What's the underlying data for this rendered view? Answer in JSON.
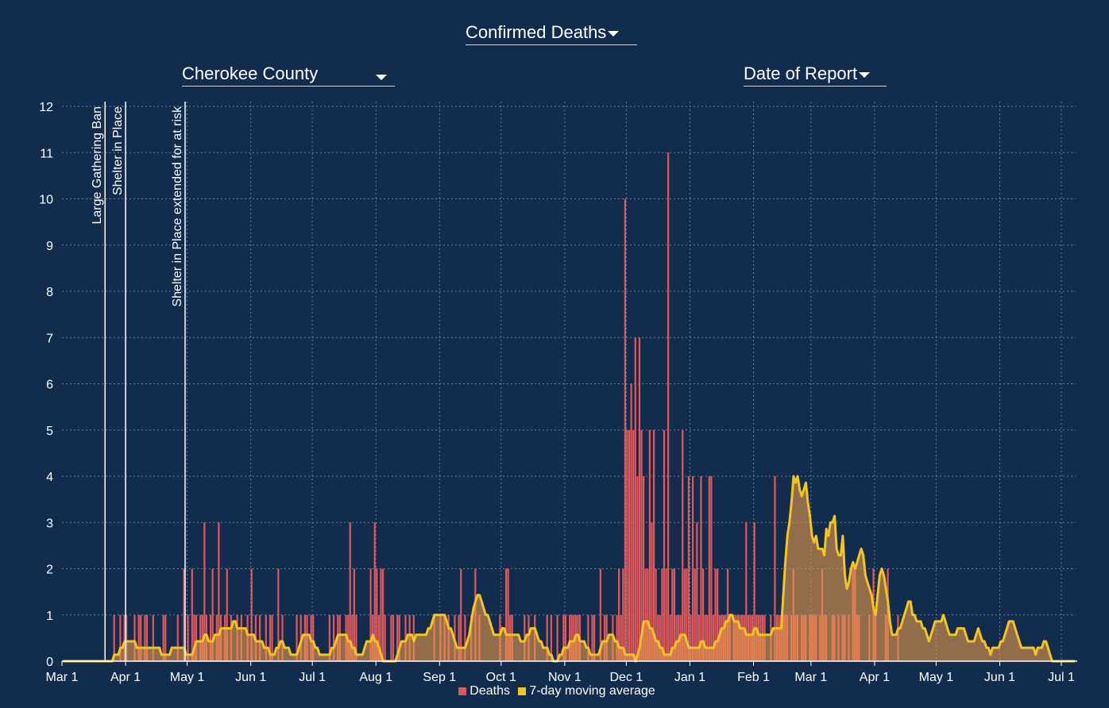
{
  "controls": {
    "metric": "Confirmed Deaths",
    "county": "Cherokee County",
    "date_type": "Date of Report"
  },
  "colors": {
    "background": "#112c4d",
    "bars": "#e0585a",
    "area": "#e89a4c",
    "line": "#f5c41f",
    "grid": "#6c7f99",
    "text": "#ffffff"
  },
  "chart_data": {
    "type": "bar",
    "title": "Confirmed Deaths",
    "xlabel": "",
    "ylabel": "",
    "x_start": "2020-03-01",
    "x_end": "2021-07-01",
    "ylim": [
      0,
      12
    ],
    "y_ticks": [
      0,
      1,
      2,
      3,
      4,
      5,
      6,
      7,
      8,
      9,
      10,
      11,
      12
    ],
    "x_ticks": [
      {
        "date": "2020-03-01",
        "label": "Mar 1"
      },
      {
        "date": "2020-04-01",
        "label": "Apr 1"
      },
      {
        "date": "2020-05-01",
        "label": "May 1"
      },
      {
        "date": "2020-06-01",
        "label": "Jun 1"
      },
      {
        "date": "2020-07-01",
        "label": "Jul 1"
      },
      {
        "date": "2020-08-01",
        "label": "Aug 1"
      },
      {
        "date": "2020-09-01",
        "label": "Sep 1"
      },
      {
        "date": "2020-10-01",
        "label": "Oct 1"
      },
      {
        "date": "2020-11-01",
        "label": "Nov 1"
      },
      {
        "date": "2020-12-01",
        "label": "Dec 1"
      },
      {
        "date": "2021-01-01",
        "label": "Jan 1"
      },
      {
        "date": "2021-02-01",
        "label": "Feb 1"
      },
      {
        "date": "2021-03-01",
        "label": "Mar 1"
      },
      {
        "date": "2021-04-01",
        "label": "Apr 1"
      },
      {
        "date": "2021-05-01",
        "label": "May 1"
      },
      {
        "date": "2021-06-01",
        "label": "Jun 1"
      },
      {
        "date": "2021-07-01",
        "label": "Jul 1"
      }
    ],
    "annotations": [
      {
        "date": "2020-03-22",
        "label": "Large Gathering Ban"
      },
      {
        "date": "2020-04-01",
        "label": "Shelter in Place"
      },
      {
        "date": "2020-04-30",
        "label": "Shelter in Place extended for at risk"
      }
    ],
    "legend": [
      "Deaths",
      "7-day moving average"
    ],
    "series": [
      {
        "name": "Deaths",
        "start_date": "2020-03-01",
        "values": [
          0,
          0,
          0,
          0,
          0,
          0,
          0,
          0,
          0,
          0,
          0,
          0,
          0,
          0,
          0,
          0,
          0,
          0,
          0,
          0,
          0,
          0,
          0,
          0,
          0,
          1,
          0,
          0,
          1,
          0,
          1,
          1,
          0,
          0,
          0,
          1,
          0,
          1,
          1,
          0,
          1,
          1,
          0,
          0,
          1,
          0,
          0,
          0,
          0,
          1,
          1,
          0,
          0,
          0,
          0,
          0,
          1,
          0,
          0,
          2,
          0,
          1,
          0,
          2,
          1,
          1,
          0,
          1,
          1,
          3,
          1,
          0,
          1,
          2,
          0,
          1,
          3,
          1,
          0,
          1,
          2,
          0,
          1,
          0,
          0,
          1,
          0,
          1,
          0,
          0,
          1,
          0,
          2,
          0,
          1,
          0,
          1,
          0,
          0,
          1,
          0,
          1,
          1,
          0,
          0,
          2,
          0,
          1,
          0,
          0,
          0,
          0,
          0,
          0,
          1,
          0,
          1,
          0,
          1,
          1,
          0,
          1,
          1,
          0,
          0,
          0,
          0,
          0,
          0,
          0,
          1,
          0,
          1,
          0,
          1,
          1,
          0,
          0,
          1,
          1,
          3,
          1,
          2,
          1,
          0,
          0,
          0,
          0,
          0,
          0,
          2,
          1,
          3,
          2,
          1,
          2,
          2,
          1,
          0,
          0,
          1,
          1,
          0,
          1,
          1,
          0,
          0,
          1,
          0,
          1,
          0,
          1,
          0,
          0,
          0,
          0,
          0,
          0,
          0,
          0,
          0,
          1,
          0,
          0,
          1,
          0,
          1,
          0,
          1,
          0,
          0,
          1,
          0,
          1,
          2,
          0,
          1,
          0,
          0,
          1,
          0,
          2,
          0,
          1,
          0,
          0,
          0,
          0,
          0,
          0,
          0,
          0,
          0,
          1,
          0,
          0,
          2,
          2,
          1,
          1,
          0,
          0,
          0,
          0,
          0,
          1,
          0,
          1,
          0,
          0,
          1,
          0,
          0,
          0,
          0,
          0,
          1,
          0,
          1,
          0,
          0,
          1,
          0,
          0,
          1,
          1,
          0,
          1,
          1,
          1,
          1,
          1,
          1,
          0,
          0,
          0,
          1,
          0,
          1,
          1,
          0,
          0,
          2,
          0,
          1,
          1,
          0,
          0,
          1,
          0,
          1,
          2,
          1,
          2,
          10,
          5,
          5,
          6,
          5,
          7,
          4,
          7,
          5,
          4,
          2,
          2,
          5,
          3,
          5,
          2,
          1,
          1,
          2,
          5,
          2,
          11,
          1,
          2,
          2,
          1,
          1,
          1,
          5,
          2,
          2,
          4,
          1,
          4,
          2,
          3,
          1,
          4,
          2,
          1,
          1,
          4,
          4,
          1,
          2,
          2,
          1,
          1,
          1,
          1,
          2,
          1,
          0,
          1,
          1,
          1,
          1,
          1,
          1,
          3,
          1,
          1,
          1,
          3,
          1,
          1,
          1,
          1,
          1,
          0,
          0,
          1,
          0,
          4,
          1,
          1,
          1,
          1,
          1,
          1,
          0,
          1,
          2,
          1,
          1,
          0,
          1,
          1,
          1,
          0,
          1,
          1,
          1,
          1,
          0,
          1,
          2,
          1,
          1,
          0,
          0,
          1,
          1,
          0,
          1,
          0,
          1,
          1,
          0,
          1,
          0,
          2,
          2,
          1,
          1,
          0,
          0,
          0,
          0,
          1,
          0,
          2,
          1,
          0,
          0,
          0,
          0,
          1,
          2,
          0,
          0,
          0,
          0,
          1,
          0,
          0,
          0,
          0,
          0,
          0,
          0,
          0,
          0,
          0,
          0,
          0,
          0
        ]
      },
      {
        "name": "7-day moving average",
        "start_date": "2020-03-01",
        "values": [
          0,
          0,
          0,
          0,
          0,
          0,
          0,
          0,
          0,
          0,
          0,
          0,
          0,
          0,
          0,
          0,
          0,
          0,
          0,
          0,
          0,
          0,
          0,
          0,
          0,
          0.14,
          0.14,
          0.14,
          0.29,
          0.29,
          0.43,
          0.43,
          0.43,
          0.43,
          0.43,
          0.43,
          0.29,
          0.29,
          0.29,
          0.29,
          0.29,
          0.29,
          0.29,
          0.29,
          0.29,
          0.29,
          0.29,
          0.29,
          0.14,
          0.14,
          0.14,
          0.14,
          0.14,
          0.29,
          0.29,
          0.29,
          0.29,
          0.29,
          0.29,
          0.29,
          0.14,
          0.14,
          0.14,
          0.14,
          0.29,
          0.43,
          0.43,
          0.43,
          0.43,
          0.57,
          0.57,
          0.43,
          0.43,
          0.43,
          0.57,
          0.57,
          0.57,
          0.71,
          0.71,
          0.71,
          0.71,
          0.71,
          0.71,
          0.86,
          0.86,
          0.71,
          0.71,
          0.71,
          0.71,
          0.71,
          0.57,
          0.57,
          0.57,
          0.57,
          0.43,
          0.43,
          0.43,
          0.43,
          0.29,
          0.29,
          0.29,
          0.14,
          0.14,
          0.14,
          0.29,
          0.29,
          0.43,
          0.43,
          0.29,
          0.29,
          0.29,
          0.14,
          0.14,
          0.14,
          0.14,
          0.29,
          0.43,
          0.57,
          0.57,
          0.57,
          0.57,
          0.43,
          0.43,
          0.29,
          0.29,
          0.14,
          0.14,
          0.14,
          0.14,
          0.14,
          0.14,
          0.29,
          0.29,
          0.43,
          0.57,
          0.57,
          0.57,
          0.57,
          0.57,
          0.43,
          0.43,
          0.29,
          0.29,
          0.14,
          0.14,
          0.14,
          0.14,
          0.29,
          0.43,
          0.43,
          0.43,
          0.57,
          0.43,
          0.43,
          0.29,
          0.14,
          0,
          0,
          0,
          0,
          0,
          0,
          0,
          0.14,
          0.29,
          0.43,
          0.43,
          0.43,
          0.57,
          0.57,
          0.57,
          0.43,
          0.57,
          0.57,
          0.57,
          0.57,
          0.57,
          0.57,
          0.71,
          0.71,
          0.86,
          1,
          1,
          1,
          1,
          1,
          1,
          0.86,
          0.71,
          0.71,
          0.57,
          0.43,
          0.29,
          0.29,
          0.29,
          0.29,
          0.29,
          0.43,
          0.57,
          0.86,
          1.14,
          1.29,
          1.43,
          1.43,
          1.29,
          1.14,
          1,
          1,
          0.86,
          0.71,
          0.57,
          0.57,
          0.57,
          0.57,
          0.71,
          0.71,
          0.57,
          0.57,
          0.57,
          0.57,
          0.57,
          0.57,
          0.57,
          0.43,
          0.43,
          0.43,
          0.57,
          0.57,
          0.71,
          0.71,
          0.71,
          0.57,
          0.43,
          0.43,
          0.29,
          0.29,
          0.29,
          0.14,
          0.14,
          0,
          0,
          0,
          0.14,
          0.14,
          0.29,
          0.29,
          0.29,
          0.43,
          0.43,
          0.43,
          0.57,
          0.57,
          0.43,
          0.43,
          0.43,
          0.29,
          0.29,
          0.14,
          0.14,
          0.14,
          0.14,
          0.14,
          0.29,
          0.43,
          0.43,
          0.43,
          0.57,
          0.57,
          0.57,
          0.43,
          0.43,
          0.29,
          0.29,
          0.29,
          0.14,
          0.14,
          0.14,
          0.14,
          0.14,
          0,
          0.14,
          0.29,
          0.57,
          0.86,
          0.86,
          0.86,
          0.71,
          0.71,
          0.57,
          0.43,
          0.43,
          0.29,
          0.29,
          0.14,
          0.14,
          0.14,
          0.14,
          0.29,
          0.29,
          0.43,
          0.43,
          0.57,
          0.57,
          0.57,
          0.43,
          0.29,
          0.29,
          0.29,
          0.29,
          0.29,
          0.29,
          0.43,
          0.43,
          0.29,
          0.29,
          0.29,
          0.29,
          0.29,
          0.43,
          0.43,
          0.57,
          0.71,
          0.71,
          0.86,
          0.86,
          1,
          1,
          0.86,
          0.86,
          0.86,
          0.71,
          0.71,
          0.71,
          0.57,
          0.57,
          0.57,
          0.57,
          0.71,
          0.71,
          0.57,
          0.57,
          0.57,
          0.57,
          0.57,
          0.57,
          0.57,
          0.71,
          0.71,
          0.71,
          0.71,
          0.71,
          1.43,
          2.14,
          2.71,
          3,
          3.43,
          4,
          3.86,
          4,
          3.71,
          3.57,
          3.71,
          3.86,
          3.43,
          3.14,
          2.71,
          2.57,
          2.71,
          2.43,
          2.43,
          2.43,
          2.29,
          2.86,
          2.71,
          3,
          3,
          3.14,
          2.43,
          2.29,
          2.29,
          2.71,
          1.86,
          1.57,
          1.71,
          2,
          2.14,
          2,
          2.14,
          2.29,
          2.43,
          2.29,
          1.86,
          1.71,
          1.57,
          1.43,
          1.14,
          1,
          1.43,
          1.86,
          2,
          1.86,
          1.57,
          1.29,
          0.86,
          0.57,
          0.57,
          0.57,
          0.71,
          0.71,
          0.86,
          1,
          1.14,
          1.29,
          1.29,
          1,
          1,
          0.86,
          0.86,
          0.86,
          0.71,
          0.71,
          0.57,
          0.43,
          0.57,
          0.71,
          0.86,
          0.86,
          0.86,
          0.86,
          1,
          0.86,
          0.71,
          0.57,
          0.57,
          0.57,
          0.57,
          0.71,
          0.71,
          0.71,
          0.71,
          0.57,
          0.43,
          0.43,
          0.43,
          0.43,
          0.57,
          0.71,
          0.57,
          0.43,
          0.43,
          0.29,
          0.29,
          0.14,
          0.29,
          0.29,
          0.29,
          0.29,
          0.43,
          0.43,
          0.57,
          0.71,
          0.86,
          0.86,
          0.86,
          0.71,
          0.57,
          0.43,
          0.29,
          0.29,
          0.29,
          0.29,
          0.29,
          0.29,
          0.29,
          0.14,
          0.29,
          0.29,
          0.29,
          0.43,
          0.43,
          0.29,
          0.14,
          0,
          0,
          0,
          0,
          0,
          0,
          0,
          0,
          0,
          0,
          0,
          0
        ]
      }
    ]
  }
}
